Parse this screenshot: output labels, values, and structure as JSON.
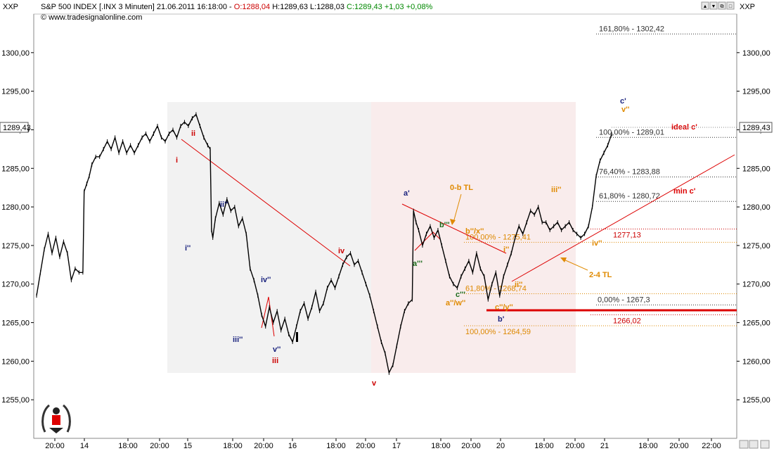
{
  "header": {
    "symbol_left": "XXP",
    "symbol_right": "XXP",
    "title_prefix": "S&P 500 INDEX [.INX  3 Minuten] 21.06.2011 16:18:00 - ",
    "open": "O:1288,04",
    "hlc": " H:1289,63 L:1288,03 ",
    "change": "C:1289,43 +1,03 +0,08%",
    "copyright": "© www.tradesignalonline.com",
    "window_buttons": [
      "▲",
      "▼",
      "⧉",
      "□",
      "✕"
    ]
  },
  "colors": {
    "open": "#cc0000",
    "change": "#008800",
    "price": "#000000",
    "red_line": "#dd0000",
    "fib_gray": "#333333",
    "fib_orange": "#dd8800",
    "fib_red": "#cc0000",
    "wave_red": "#cc0000",
    "wave_navy": "#1a237e",
    "wave_orange": "#e08a00",
    "wave_green": "#1b6b1b",
    "shade_left": "#f2f2f2",
    "shade_right": "#f9ecec"
  },
  "chart_data": {
    "type": "line",
    "title": "S&P 500 INDEX [.INX  3 Minuten]",
    "xlabel": "",
    "ylabel": "",
    "ylim": [
      1250,
      1305
    ],
    "y_ticks": [
      1255,
      1260,
      1265,
      1270,
      1275,
      1280,
      1285,
      1290,
      1295,
      1300
    ],
    "y_tick_labels": [
      "1255,00",
      "1260,00",
      "1265,00",
      "1270,00",
      "1275,00",
      "1280,00",
      "1285,00",
      "1290,00",
      "1295,00",
      "1300,00"
    ],
    "x_ticks": [
      "20:00",
      "14",
      "18:00",
      "20:00",
      "15",
      "18:00",
      "20:00",
      "16",
      "18:00",
      "20:00",
      "17",
      "18:00",
      "20:00",
      "20",
      "18:00",
      "20:00",
      "21",
      "18:00",
      "20:00",
      "22:00"
    ],
    "last_price_label": "1289,43",
    "last_price": 1289.43,
    "series": [
      {
        "values": [
          [
            0,
            1268.5
          ],
          [
            3,
            1271.5
          ],
          [
            6,
            1274.5
          ],
          [
            9,
            1276.5
          ],
          [
            12,
            1274
          ],
          [
            15,
            1276
          ],
          [
            18,
            1273.5
          ],
          [
            21,
            1275.5
          ],
          [
            24,
            1274
          ],
          [
            27,
            1270.5
          ],
          [
            30,
            1272
          ],
          [
            33,
            1271.5
          ],
          [
            36,
            1271.5
          ],
          [
            37,
            1282
          ],
          [
            39,
            1283
          ],
          [
            41,
            1284
          ],
          [
            43,
            1285.5
          ],
          [
            46,
            1286.5
          ],
          [
            49,
            1286.5
          ],
          [
            52,
            1287.5
          ],
          [
            55,
            1288.5
          ],
          [
            58,
            1287.5
          ],
          [
            61,
            1289
          ],
          [
            64,
            1287
          ],
          [
            67,
            1288.5
          ],
          [
            70,
            1287
          ],
          [
            73,
            1288
          ],
          [
            76,
            1287
          ],
          [
            79,
            1288
          ],
          [
            82,
            1289
          ],
          [
            85,
            1289.5
          ],
          [
            88,
            1288.5
          ],
          [
            91,
            1289.5
          ],
          [
            94,
            1290.5
          ],
          [
            97,
            1289
          ],
          [
            100,
            1288.5
          ],
          [
            103,
            1289.5
          ],
          [
            106,
            1290
          ],
          [
            109,
            1289
          ],
          [
            112,
            1290.5
          ],
          [
            115,
            1291
          ],
          [
            118,
            1290.5
          ],
          [
            121,
            1291.5
          ],
          [
            124,
            1292
          ],
          [
            127,
            1290.5
          ],
          [
            130,
            1289
          ],
          [
            133,
            1288
          ],
          [
            135,
            1287.5
          ],
          [
            136,
            1277
          ],
          [
            137,
            1276
          ],
          [
            139,
            1278.5
          ],
          [
            142,
            1280.5
          ],
          [
            145,
            1279
          ],
          [
            148,
            1281
          ],
          [
            151,
            1279.5
          ],
          [
            154,
            1280
          ],
          [
            157,
            1277.5
          ],
          [
            160,
            1278.5
          ],
          [
            163,
            1276.5
          ],
          [
            166,
            1272
          ],
          [
            169,
            1270.5
          ],
          [
            172,
            1268.5
          ],
          [
            175,
            1266
          ],
          [
            178,
            1264.5
          ],
          [
            181,
            1267
          ],
          [
            184,
            1265
          ],
          [
            187,
            1266.5
          ],
          [
            190,
            1264
          ],
          [
            193,
            1265.5
          ],
          [
            196,
            1263.5
          ],
          [
            199,
            1262.5
          ],
          [
            202,
            1264.5
          ],
          [
            205,
            1266.5
          ],
          [
            208,
            1267.5
          ],
          [
            211,
            1265.5
          ],
          [
            214,
            1267
          ],
          [
            217,
            1269
          ],
          [
            220,
            1266.5
          ],
          [
            223,
            1267.5
          ],
          [
            226,
            1269.5
          ],
          [
            229,
            1270.5
          ],
          [
            232,
            1269.5
          ],
          [
            235,
            1271
          ],
          [
            238,
            1272.5
          ],
          [
            241,
            1273.5
          ],
          [
            244,
            1274
          ],
          [
            247,
            1272.5
          ],
          [
            250,
            1273
          ],
          [
            253,
            1271.5
          ],
          [
            256,
            1270
          ],
          [
            259,
            1268.5
          ],
          [
            262,
            1266.5
          ],
          [
            265,
            1264.5
          ],
          [
            268,
            1262.5
          ],
          [
            271,
            1261
          ],
          [
            274,
            1258.5
          ],
          [
            277,
            1259.5
          ],
          [
            280,
            1262
          ],
          [
            283,
            1264.5
          ],
          [
            286,
            1266.5
          ],
          [
            289,
            1267.5
          ],
          [
            292,
            1268
          ],
          [
            293,
            1279.5
          ],
          [
            295,
            1278
          ],
          [
            297,
            1277
          ],
          [
            300,
            1275
          ],
          [
            303,
            1276.5
          ],
          [
            306,
            1277.5
          ],
          [
            309,
            1276
          ],
          [
            312,
            1277
          ],
          [
            315,
            1275
          ],
          [
            318,
            1273
          ],
          [
            321,
            1271
          ],
          [
            324,
            1270
          ],
          [
            327,
            1269.5
          ],
          [
            330,
            1271
          ],
          [
            333,
            1272
          ],
          [
            336,
            1273
          ],
          [
            339,
            1271.5
          ],
          [
            342,
            1274
          ],
          [
            345,
            1272
          ],
          [
            348,
            1271
          ],
          [
            351,
            1268
          ],
          [
            354,
            1270
          ],
          [
            357,
            1271.5
          ],
          [
            360,
            1268.5
          ],
          [
            363,
            1271
          ],
          [
            366,
            1272.5
          ],
          [
            369,
            1274
          ],
          [
            372,
            1276
          ],
          [
            375,
            1277.5
          ],
          [
            378,
            1276.5
          ],
          [
            381,
            1278
          ],
          [
            384,
            1279.5
          ],
          [
            387,
            1279
          ],
          [
            390,
            1280
          ],
          [
            393,
            1278
          ],
          [
            396,
            1278
          ],
          [
            399,
            1277
          ],
          [
            402,
            1277.5
          ],
          [
            405,
            1278
          ],
          [
            408,
            1277
          ],
          [
            411,
            1277.5
          ],
          [
            414,
            1278
          ],
          [
            417,
            1277
          ],
          [
            420,
            1276.5
          ],
          [
            423,
            1276
          ],
          [
            426,
            1276.5
          ],
          [
            429,
            1277.5
          ],
          [
            432,
            1280
          ],
          [
            435,
            1284
          ],
          [
            438,
            1286
          ],
          [
            441,
            1287
          ],
          [
            444,
            1288
          ],
          [
            447,
            1289.43
          ]
        ]
      }
    ],
    "horizontal_levels": [
      {
        "label": "161,80% - 1302,42",
        "value": 1302.42,
        "color": "#333333"
      },
      {
        "label": "100,00% - 1289,01",
        "value": 1289.01,
        "color": "#333333"
      },
      {
        "label": "76,40% - 1283,88",
        "value": 1283.88,
        "color": "#333333"
      },
      {
        "label": "61,80% - 1280,72",
        "value": 1280.72,
        "color": "#333333"
      },
      {
        "label": "1277,13",
        "value": 1277.13,
        "color": "#cc0000"
      },
      {
        "label": "100,00% - 1275,41",
        "value": 1275.41,
        "color": "#dd8800"
      },
      {
        "label": "61,80% - 1268,74",
        "value": 1268.74,
        "color": "#dd8800"
      },
      {
        "label": "0,00% - 1267,3",
        "value": 1267.3,
        "color": "#333333"
      },
      {
        "label": "1266,02",
        "value": 1266.02,
        "color": "#cc0000"
      },
      {
        "label": "100,00% - 1264,59",
        "value": 1264.59,
        "color": "#dd8800"
      }
    ],
    "annotations": [
      {
        "text": "i",
        "color": "#cc0000"
      },
      {
        "text": "ii",
        "color": "#cc0000"
      },
      {
        "text": "iii",
        "color": "#cc0000"
      },
      {
        "text": "iv",
        "color": "#cc0000"
      },
      {
        "text": "v",
        "color": "#cc0000"
      },
      {
        "text": "i''",
        "color": "#1a237e"
      },
      {
        "text": "ii''",
        "color": "#1a237e"
      },
      {
        "text": "iii''",
        "color": "#1a237e"
      },
      {
        "text": "iv''",
        "color": "#1a237e"
      },
      {
        "text": "v''",
        "color": "#1a237e"
      },
      {
        "text": "a'",
        "color": "#1a237e"
      },
      {
        "text": "b'",
        "color": "#1a237e"
      },
      {
        "text": "c'",
        "color": "#1a237e"
      },
      {
        "text": "v''",
        "color": "#e08a00"
      },
      {
        "text": "a'''",
        "color": "#1b6b1b"
      },
      {
        "text": "b'''",
        "color": "#1b6b1b"
      },
      {
        "text": "c'''",
        "color": "#1b6b1b"
      },
      {
        "text": "b''/x''",
        "color": "#e08a00"
      },
      {
        "text": "a''/w''",
        "color": "#e08a00"
      },
      {
        "text": "c''/y''",
        "color": "#e08a00"
      },
      {
        "text": "i''",
        "color": "#e08a00"
      },
      {
        "text": "ii''",
        "color": "#e08a00"
      },
      {
        "text": "iii''",
        "color": "#e08a00"
      },
      {
        "text": "iv''",
        "color": "#e08a00"
      },
      {
        "text": "0-b TL",
        "color": "#e08a00"
      },
      {
        "text": "2-4 TL",
        "color": "#e08a00"
      },
      {
        "text": "ideal c'",
        "color": "#dd0000"
      },
      {
        "text": "min c'",
        "color": "#dd0000"
      }
    ],
    "grid": false,
    "legend": "none"
  }
}
